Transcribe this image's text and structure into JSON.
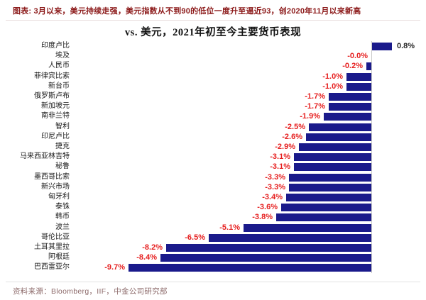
{
  "header": {
    "caption": "图表: 3月以来，美元持续走强，美元指数从不到90的低位一度升至逼近93，创2020年11月以来新高"
  },
  "footer": {
    "source": "资料来源：Bloomberg，IIF，中金公司研究部"
  },
  "colors": {
    "bar": "#1a1a8b",
    "negative_label": "#e62020",
    "positive_label": "#262626",
    "header_text": "#8c1a1a",
    "source_text": "#8d6b6b",
    "axis_line": "#c9c9c9"
  },
  "chart_data": {
    "type": "bar",
    "orientation": "horizontal",
    "title": "vs. 美元，2021年初至今主要货币表现",
    "unit": "%",
    "xlim": [
      -10,
      1
    ],
    "grid": false,
    "legend": false,
    "categories": [
      "印度卢比",
      "埃及",
      "人民币",
      "菲律宾比索",
      "新台币",
      "俄罗斯卢布",
      "新加坡元",
      "南非兰特",
      "智利",
      "印尼卢比",
      "捷克",
      "马来西亚林吉特",
      "秘鲁",
      "墨西哥比索",
      "新兴市场",
      "匈牙利",
      "泰铢",
      "韩币",
      "波兰",
      "哥伦比亚",
      "土耳其里拉",
      "阿根廷",
      "巴西雷亚尔"
    ],
    "values": [
      0.8,
      -0.0,
      -0.2,
      -1.0,
      -1.0,
      -1.7,
      -1.7,
      -1.9,
      -2.5,
      -2.6,
      -2.9,
      -3.1,
      -3.1,
      -3.3,
      -3.3,
      -3.4,
      -3.6,
      -3.8,
      -5.1,
      -6.5,
      -8.2,
      -8.4,
      -9.7
    ],
    "value_labels": [
      "0.8%",
      "-0.0%",
      "-0.2%",
      "-1.0%",
      "-1.0%",
      "-1.7%",
      "-1.7%",
      "-1.9%",
      "-2.5%",
      "-2.6%",
      "-2.9%",
      "-3.1%",
      "-3.1%",
      "-3.3%",
      "-3.3%",
      "-3.4%",
      "-3.6%",
      "-3.8%",
      "-5.1%",
      "-6.5%",
      "-8.2%",
      "-8.4%",
      "-9.7%"
    ]
  }
}
